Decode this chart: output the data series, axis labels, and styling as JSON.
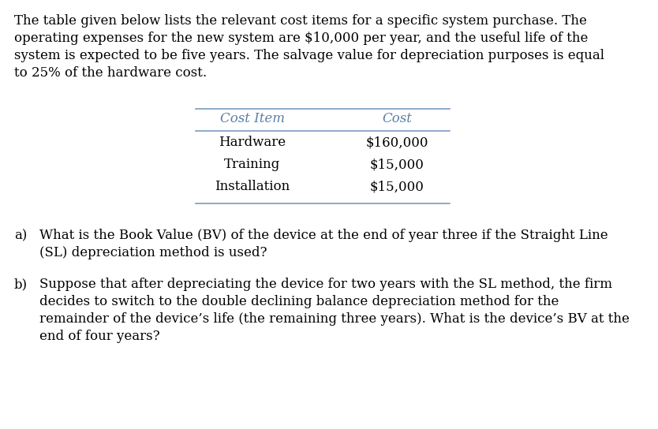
{
  "background_color": "#ffffff",
  "text_color": "#000000",
  "table_header_color": "#5b7fa6",
  "intro_lines": [
    "The table given below lists the relevant cost items for a specific system purchase. The",
    "operating expenses for the new system are $10,000 per year, and the useful life of the",
    "system is expected to be five years. The salvage value for depreciation purposes is equal",
    "to 25% of the hardware cost."
  ],
  "table_header": [
    "Cost Item",
    "Cost"
  ],
  "table_rows": [
    [
      "Hardware",
      "$160,000"
    ],
    [
      "Training",
      "$15,000"
    ],
    [
      "Installation",
      "$15,000"
    ]
  ],
  "qa_label": "a)",
  "qa_line1": "What is the Book Value (BV) of the device at the end of year three if the Straight Line",
  "qa_line2": "(SL) depreciation method is used?",
  "qb_label": "b)",
  "qb_line1": "Suppose that after depreciating the device for two years with the SL method, the firm",
  "qb_line2": "decides to switch to the double declining balance depreciation method for the",
  "qb_line3": "remainder of the device’s life (the remaining three years). What is the device’s BV at the",
  "qb_line4": "end of four years?",
  "font_size": 12.0,
  "table_font_size": 12.0
}
